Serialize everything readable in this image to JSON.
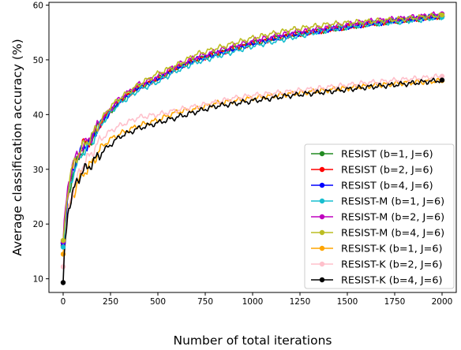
{
  "chart_data": {
    "type": "line",
    "title": "",
    "xlabel": "Number of total iterations",
    "ylabel": "Average classification accuracy (%)",
    "xlim": [
      -75,
      2075
    ],
    "ylim": [
      7.5,
      60.5
    ],
    "xticks": [
      0,
      250,
      500,
      750,
      1000,
      1250,
      1500,
      1750,
      2000
    ],
    "yticks": [
      10,
      20,
      30,
      40,
      50,
      60
    ],
    "grid": false,
    "legend_position": "lower-right",
    "x": [
      0,
      10,
      25,
      50,
      75,
      100,
      150,
      200,
      250,
      300,
      400,
      500,
      600,
      700,
      800,
      900,
      1000,
      1200,
      1400,
      1600,
      1800,
      2000
    ],
    "series": [
      {
        "name": "RESIST (b=1, J=6)",
        "color": "#228b22",
        "marker": "circle",
        "values": [
          16.5,
          20,
          25,
          29,
          31.5,
          33.5,
          35.5,
          38.5,
          40.5,
          42.5,
          45,
          46.5,
          48.5,
          50,
          51,
          52,
          53,
          54.5,
          55.5,
          56.5,
          57.2,
          58
        ]
      },
      {
        "name": "RESIST (b=2, J=6)",
        "color": "#ff0000",
        "marker": "circle",
        "values": [
          16,
          21,
          26,
          30,
          32.5,
          34.5,
          35.5,
          38.5,
          41,
          42.5,
          45,
          46.5,
          48.5,
          50,
          51,
          52,
          53,
          54.5,
          55.5,
          56.5,
          57.3,
          58
        ]
      },
      {
        "name": "RESIST (b=4, J=6)",
        "color": "#0000ff",
        "marker": "circle",
        "values": [
          16.5,
          20.5,
          25.5,
          29.5,
          32,
          33.5,
          35.5,
          38.5,
          40.5,
          42.5,
          45,
          46.5,
          48.5,
          50,
          51,
          52,
          53,
          54.5,
          55.5,
          56.5,
          57.3,
          58
        ]
      },
      {
        "name": "RESIST-M (b=1, J=6)",
        "color": "#17becf",
        "marker": "circle",
        "values": [
          15.8,
          20,
          25,
          29,
          31,
          33,
          35,
          38,
          40.5,
          42,
          44.5,
          46,
          48,
          49.5,
          50.5,
          51.5,
          52.5,
          54,
          55.5,
          56.5,
          57,
          57.8
        ]
      },
      {
        "name": "RESIST-M (b=2, J=6)",
        "color": "#bf00bf",
        "marker": "circle",
        "values": [
          16.8,
          21.5,
          27,
          31,
          32.5,
          34,
          36,
          39,
          41,
          43,
          45.5,
          47,
          49,
          50.5,
          51.5,
          52.5,
          53.5,
          55,
          56,
          57,
          57.6,
          58.4
        ]
      },
      {
        "name": "RESIST-M (b=4, J=6)",
        "color": "#bcbd22",
        "marker": "circle",
        "values": [
          17,
          21,
          26.5,
          30.5,
          32.5,
          34,
          36,
          39,
          41.5,
          43,
          45.5,
          47.5,
          49,
          51,
          52,
          53,
          54,
          55.5,
          56.5,
          57,
          57.5,
          58.2
        ]
      },
      {
        "name": "RESIST-K (b=1, J=6)",
        "color": "#ffa500",
        "marker": "circle",
        "values": [
          14.5,
          18.5,
          22,
          25,
          27.5,
          29,
          31,
          34,
          35.5,
          36.5,
          38,
          39,
          40.5,
          41,
          42,
          42.5,
          43,
          43.8,
          44.5,
          45.2,
          45.8,
          46.2
        ]
      },
      {
        "name": "RESIST-K (b=2, J=6)",
        "color": "#ffc0cb",
        "marker": "circle",
        "values": [
          12.2,
          17,
          22.5,
          26,
          28.5,
          30.5,
          33,
          35.5,
          37,
          38,
          39.5,
          40,
          40.8,
          41.5,
          42.2,
          43,
          43.5,
          44.2,
          45,
          45.8,
          46.4,
          47
        ]
      },
      {
        "name": "RESIST-K (b=4, J=6)",
        "color": "#000000",
        "marker": "circle",
        "values": [
          9.3,
          16,
          22.5,
          25.5,
          28,
          29.5,
          31,
          33,
          34.5,
          36,
          37.5,
          38.5,
          39.5,
          40.5,
          41.5,
          42,
          42.5,
          43.5,
          44.2,
          45,
          45.6,
          46.3
        ]
      }
    ]
  }
}
